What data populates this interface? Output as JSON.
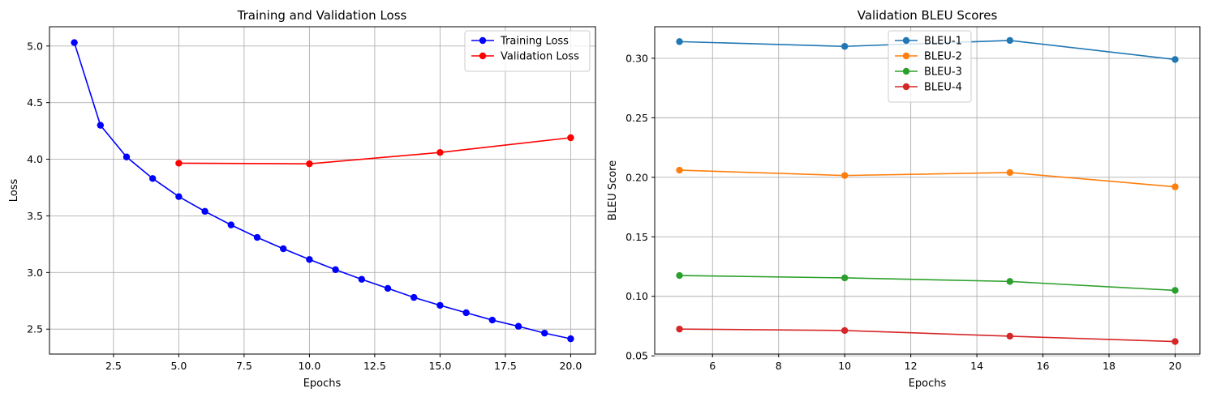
{
  "chart_data": [
    {
      "type": "line",
      "title": "Training and Validation Loss",
      "xlabel": "Epochs",
      "ylabel": "Loss",
      "xlim": [
        0.05,
        20.95
      ],
      "ylim": [
        2.28,
        5.17
      ],
      "xticks": [
        "2.5",
        "5.0",
        "7.5",
        "10.0",
        "12.5",
        "15.0",
        "17.5",
        "20.0"
      ],
      "yticks": [
        "2.5",
        "3.0",
        "3.5",
        "4.0",
        "4.5",
        "5.0"
      ],
      "grid": true,
      "legend": "top-right",
      "series": [
        {
          "name": "Training Loss",
          "color": "#0000ff",
          "x": [
            1,
            2,
            3,
            4,
            5,
            6,
            7,
            8,
            9,
            10,
            11,
            12,
            13,
            14,
            15,
            16,
            17,
            18,
            19,
            20
          ],
          "y": [
            5.03,
            4.3,
            4.02,
            3.83,
            3.67,
            3.54,
            3.42,
            3.31,
            3.21,
            3.115,
            3.025,
            2.94,
            2.86,
            2.78,
            2.71,
            2.645,
            2.58,
            2.525,
            2.465,
            2.415
          ]
        },
        {
          "name": "Validation Loss",
          "color": "#ff0000",
          "x": [
            5,
            10,
            15,
            20
          ],
          "y": [
            3.965,
            3.96,
            4.06,
            4.19
          ]
        }
      ]
    },
    {
      "type": "line",
      "title": "Validation BLEU Scores",
      "xlabel": "Epochs",
      "ylabel": "BLEU Score",
      "xlim": [
        4.25,
        20.75
      ],
      "ylim": [
        0.0515,
        0.3265
      ],
      "xticks": [
        "6",
        "8",
        "10",
        "12",
        "14",
        "16",
        "18",
        "20"
      ],
      "yticks": [
        "0.05",
        "0.10",
        "0.15",
        "0.20",
        "0.25",
        "0.30"
      ],
      "grid": true,
      "legend": "upper center",
      "series": [
        {
          "name": "BLEU-1",
          "color": "#1f77b4",
          "x": [
            5,
            10,
            15,
            20
          ],
          "y": [
            0.314,
            0.31,
            0.315,
            0.299
          ]
        },
        {
          "name": "BLEU-2",
          "color": "#ff7f0e",
          "x": [
            5,
            10,
            15,
            20
          ],
          "y": [
            0.206,
            0.2015,
            0.204,
            0.192
          ]
        },
        {
          "name": "BLEU-3",
          "color": "#2ca02c",
          "x": [
            5,
            10,
            15,
            20
          ],
          "y": [
            0.1175,
            0.1155,
            0.1125,
            0.105
          ]
        },
        {
          "name": "BLEU-4",
          "color": "#d62728",
          "x": [
            5,
            10,
            15,
            20
          ],
          "y": [
            0.0725,
            0.0713,
            0.0665,
            0.062
          ]
        }
      ]
    }
  ]
}
